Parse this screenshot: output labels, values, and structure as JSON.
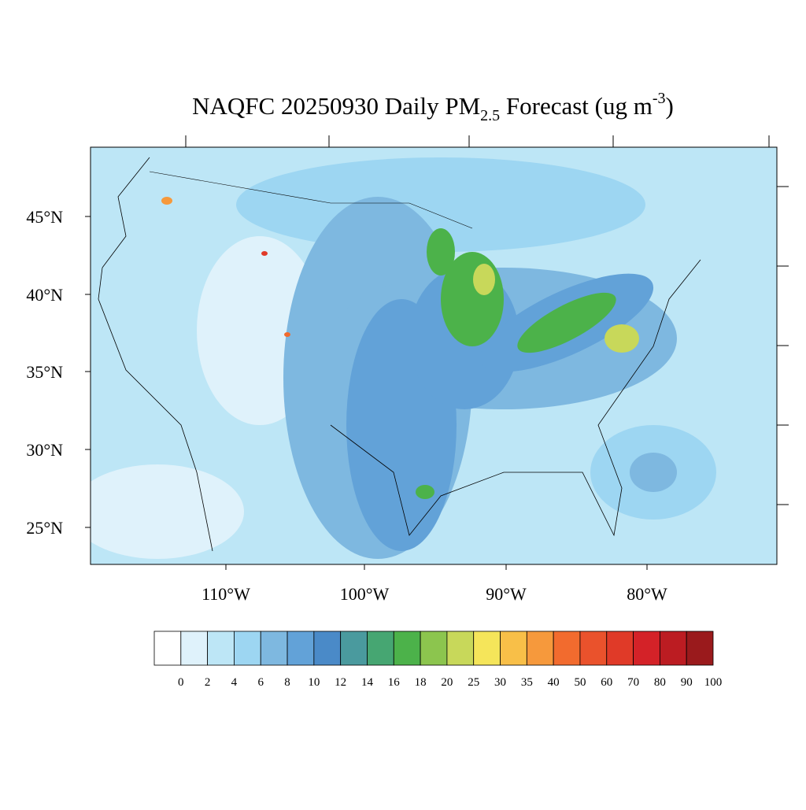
{
  "title": {
    "main": "NAQFC 20250930 Daily PM",
    "subscript": "2.5",
    "middle": " Forecast (ug m",
    "superscript": "-3",
    "end": ")"
  },
  "map": {
    "lat_labels": [
      "45°N",
      "40°N",
      "35°N",
      "30°N",
      "25°N"
    ],
    "lon_labels": [
      "110°W",
      "100°W",
      "90°W",
      "80°W"
    ]
  },
  "colorbar": {
    "colors": [
      "#ffffff",
      "#dff2fb",
      "#bde6f6",
      "#9dd6f2",
      "#7eb8e0",
      "#62a2d8",
      "#4a8ac8",
      "#4a9a9e",
      "#46a672",
      "#4cb24a",
      "#8cc54e",
      "#c8d85a",
      "#f5e55a",
      "#f8bf48",
      "#f6993c",
      "#f26b2e",
      "#ea522c",
      "#e03a28",
      "#d42228",
      "#bc1c22",
      "#9a1a1c"
    ],
    "labels": [
      "0",
      "2",
      "4",
      "6",
      "8",
      "10",
      "12",
      "14",
      "16",
      "18",
      "20",
      "25",
      "30",
      "35",
      "40",
      "50",
      "60",
      "70",
      "80",
      "90",
      "100"
    ]
  }
}
